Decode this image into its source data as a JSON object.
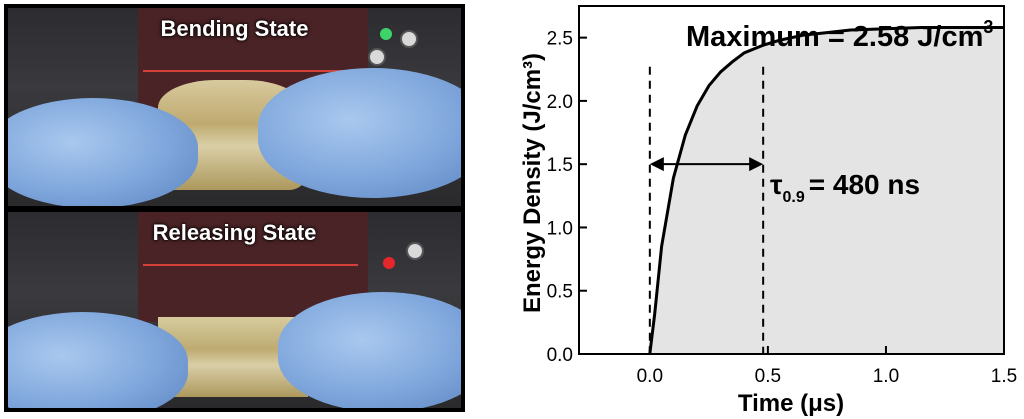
{
  "photos": {
    "top_label": "Bending State",
    "bottom_label": "Releasing State"
  },
  "chart_data": {
    "type": "area",
    "title": "",
    "xlabel": "Time (μs)",
    "ylabel": "Energy Density (J/cm³)",
    "xlim": [
      -0.3,
      1.5
    ],
    "ylim": [
      0,
      2.75
    ],
    "xticks": [
      "0.0",
      "0.5",
      "1.0",
      "1.5"
    ],
    "yticks": [
      "0.0",
      "0.5",
      "1.0",
      "1.5",
      "2.0",
      "2.5"
    ],
    "x": [
      0.0,
      0.02,
      0.05,
      0.1,
      0.15,
      0.2,
      0.25,
      0.3,
      0.35,
      0.4,
      0.48,
      0.55,
      0.65,
      0.75,
      0.85,
      1.0,
      1.15,
      1.3,
      1.5
    ],
    "y": [
      0.0,
      0.31,
      0.85,
      1.39,
      1.73,
      1.96,
      2.12,
      2.23,
      2.31,
      2.38,
      2.44,
      2.48,
      2.52,
      2.54,
      2.56,
      2.57,
      2.58,
      2.58,
      2.58
    ],
    "fill_color": "#e4e4e4",
    "line_color": "#000000",
    "grid": false,
    "annotations": {
      "maximum_label": "Maximum = 2.58 J/cm",
      "maximum_sup": "3",
      "tau_symbol": "τ",
      "tau_sub": "0.9",
      "tau_value": "= 480 ns",
      "dashed_lines_x": [
        0.0,
        0.48
      ],
      "arrow_y": 1.5
    }
  }
}
